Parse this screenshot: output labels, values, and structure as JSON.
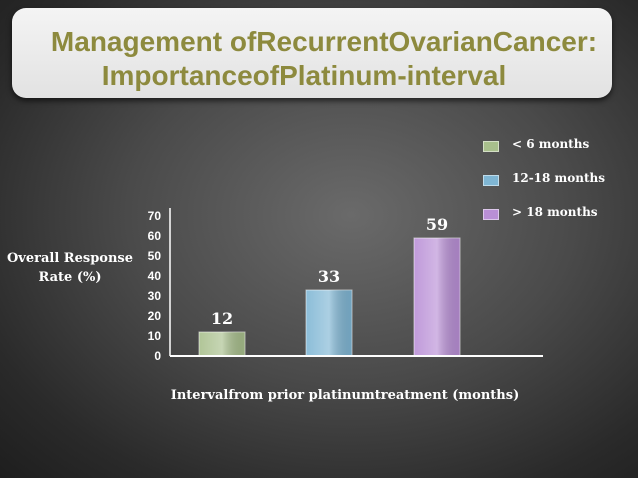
{
  "slide": {
    "title_line1": "Management ofRecurrentOvarianCancer:",
    "title_line2": "ImportanceofPlatinum-interval"
  },
  "chart_data": {
    "type": "bar",
    "categories": [
      "< 6 months",
      "12-18 months",
      "> 18 months"
    ],
    "values": [
      12,
      33,
      59
    ],
    "colors": [
      "#a8bf8c",
      "#7fb6d4",
      "#b98fd6"
    ],
    "xlabel": "Intervalfrom prior platinumtreatment (months)",
    "ylabel": "Overall Response Rate (%)",
    "ylim": [
      0,
      70
    ],
    "yticks": [
      0,
      10,
      20,
      30,
      40,
      50,
      60,
      70
    ],
    "legend": {
      "position": "top-right",
      "items": [
        "< 6 months",
        "12-18 months",
        "> 18 months"
      ]
    },
    "grid": false
  }
}
